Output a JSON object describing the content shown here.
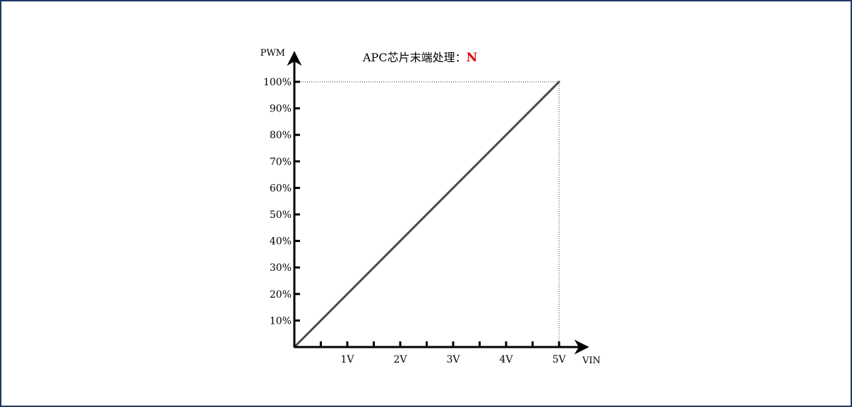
{
  "chart_data": {
    "type": "line",
    "title": "APC芯片末端处理：",
    "title_flag": "N",
    "title_flag_color": "#e00000",
    "xlabel": "VIN",
    "ylabel": "PWM",
    "x_unit": "V",
    "y_unit": "%",
    "xlim": [
      0,
      5.5
    ],
    "ylim": [
      0,
      110
    ],
    "x_ticks": [
      {
        "value": 0.5,
        "label": ""
      },
      {
        "value": 1,
        "label": "1V"
      },
      {
        "value": 1.5,
        "label": ""
      },
      {
        "value": 2,
        "label": "2V"
      },
      {
        "value": 2.5,
        "label": ""
      },
      {
        "value": 3,
        "label": "3V"
      },
      {
        "value": 3.5,
        "label": ""
      },
      {
        "value": 4,
        "label": "4V"
      },
      {
        "value": 4.5,
        "label": ""
      },
      {
        "value": 5,
        "label": "5V"
      }
    ],
    "y_ticks": [
      {
        "value": 10,
        "label": "10%"
      },
      {
        "value": 20,
        "label": "20%"
      },
      {
        "value": 30,
        "label": "30%"
      },
      {
        "value": 40,
        "label": "40%"
      },
      {
        "value": 50,
        "label": "50%"
      },
      {
        "value": 60,
        "label": "60%"
      },
      {
        "value": 70,
        "label": "70%"
      },
      {
        "value": 80,
        "label": "80%"
      },
      {
        "value": 90,
        "label": "90%"
      },
      {
        "value": 100,
        "label": "100%"
      }
    ],
    "series": [
      {
        "x": [
          0,
          5
        ],
        "y": [
          0,
          100
        ],
        "color": "#4a4a4a"
      }
    ],
    "reference_lines": {
      "x": 5,
      "y": 100,
      "style": "dotted"
    },
    "grid": false,
    "legend": "none"
  }
}
